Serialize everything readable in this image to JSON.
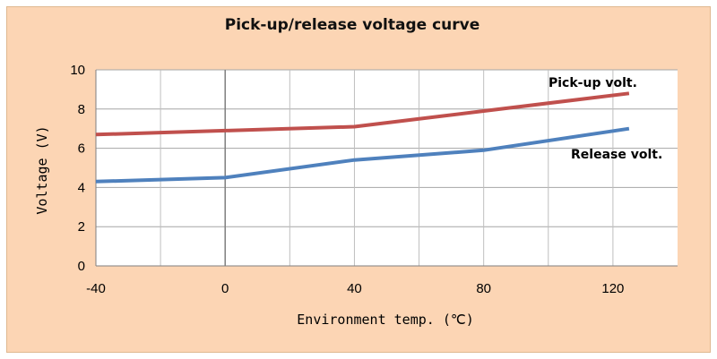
{
  "chart_data": {
    "type": "line",
    "title": "Pick-up/release voltage curve",
    "xlabel": "Environment temp. (℃)",
    "ylabel": "Voltage (V)",
    "xlim": [
      -40,
      140
    ],
    "ylim": [
      0,
      10
    ],
    "x_ticks": [
      -40,
      0,
      40,
      80,
      120
    ],
    "y_ticks": [
      0,
      2,
      4,
      6,
      8,
      10
    ],
    "grid": true,
    "series": [
      {
        "name": "Pick-up volt.",
        "color": "#c0504d",
        "x": [
          -40,
          0,
          40,
          80,
          125
        ],
        "y": [
          6.7,
          6.9,
          7.1,
          7.9,
          8.8
        ]
      },
      {
        "name": "Release volt.",
        "color": "#4f81bd",
        "x": [
          -40,
          0,
          40,
          80,
          125
        ],
        "y": [
          4.3,
          4.5,
          5.4,
          5.9,
          7.0
        ]
      }
    ]
  }
}
